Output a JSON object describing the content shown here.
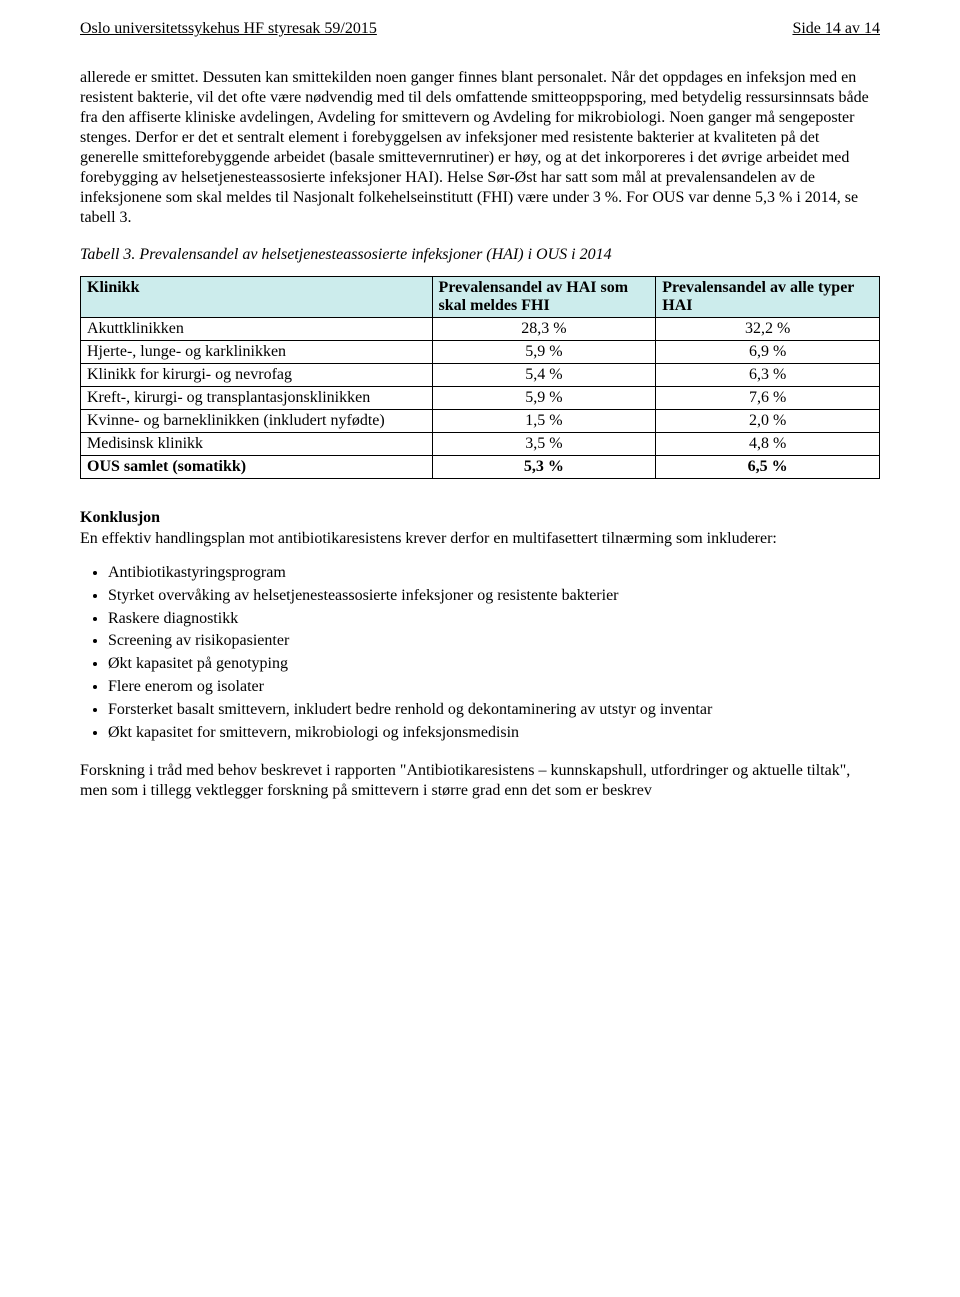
{
  "header": {
    "left": "Oslo universitetssykehus HF styresak 59/2015",
    "right": "Side 14 av 14"
  },
  "para1": "allerede er smittet. Dessuten kan smittekilden noen ganger finnes blant personalet. Når det oppdages en infeksjon med en resistent bakterie, vil det ofte være nødvendig med til dels omfattende smitteoppsporing, med betydelig ressursinnsats både fra den affiserte kliniske avdelingen, Avdeling for smittevern og Avdeling for mikrobiologi. Noen ganger må sengeposter stenges. Derfor er det et sentralt element i forebyggelsen av infeksjoner med resistente bakterier at kvaliteten på det generelle smitteforebyggende arbeidet (basale smittevernrutiner) er høy, og at det inkorporeres i det øvrige arbeidet med forebygging av helsetjenesteassosierte infeksjoner HAI).  Helse Sør-Øst har satt som mål at prevalensandelen av de infeksjonene som skal meldes til Nasjonalt folkehelseinstitutt (FHI) være under 3 %. For OUS var denne 5,3 % i 2014, se tabell 3.",
  "table_caption": "Tabell 3. Prevalensandel av helsetjenesteassosierte infeksjoner (HAI) i OUS i 2014",
  "table": {
    "header_bg": "#ccecec",
    "columns": [
      "Klinikk",
      "Prevalensandel av HAI som skal meldes FHI",
      "Prevalensandel av alle typer HAI"
    ],
    "col_widths": [
      "44%",
      "28%",
      "28%"
    ],
    "rows": [
      {
        "cells": [
          "Akuttklinikken",
          "28,3 %",
          "32,2 %"
        ],
        "bold": false
      },
      {
        "cells": [
          "Hjerte-, lunge- og karklinikken",
          "5,9 %",
          "6,9 %"
        ],
        "bold": false
      },
      {
        "cells": [
          "Klinikk for kirurgi- og nevrofag",
          "5,4 %",
          "6,3 %"
        ],
        "bold": false
      },
      {
        "cells": [
          "Kreft-, kirurgi- og transplantasjonsklinikken",
          "5,9 %",
          "7,6 %"
        ],
        "bold": false
      },
      {
        "cells": [
          "Kvinne- og barneklinikken (inkludert nyfødte)",
          "1,5 %",
          "2,0 %"
        ],
        "bold": false
      },
      {
        "cells": [
          "Medisinsk klinikk",
          "3,5 %",
          "4,8 %"
        ],
        "bold": false
      },
      {
        "cells": [
          "OUS samlet (somatikk)",
          "5,3 %",
          "6,5 %"
        ],
        "bold": true
      }
    ]
  },
  "conclusion": {
    "heading": "Konklusjon",
    "intro": "En effektiv handlingsplan mot antibiotikaresistens krever derfor en multifasettert tilnærming som inkluderer:",
    "bullets": [
      "Antibiotikastyringsprogram",
      "Styrket overvåking av helsetjenesteassosierte infeksjoner og resistente bakterier",
      "Raskere diagnostikk",
      "Screening av risikopasienter",
      "Økt kapasitet på genotyping",
      "Flere enerom og isolater",
      "Forsterket basalt smittevern, inkludert bedre renhold og dekontaminering av utstyr og inventar",
      "Økt kapasitet for smittevern, mikrobiologi og infeksjonsmedisin"
    ]
  },
  "closing": "Forskning i tråd med behov beskrevet i rapporten \"Antibiotikaresistens – kunnskapshull, utfordringer og aktuelle tiltak\", men som i tillegg vektlegger forskning på smittevern i større grad enn det som er beskrev"
}
